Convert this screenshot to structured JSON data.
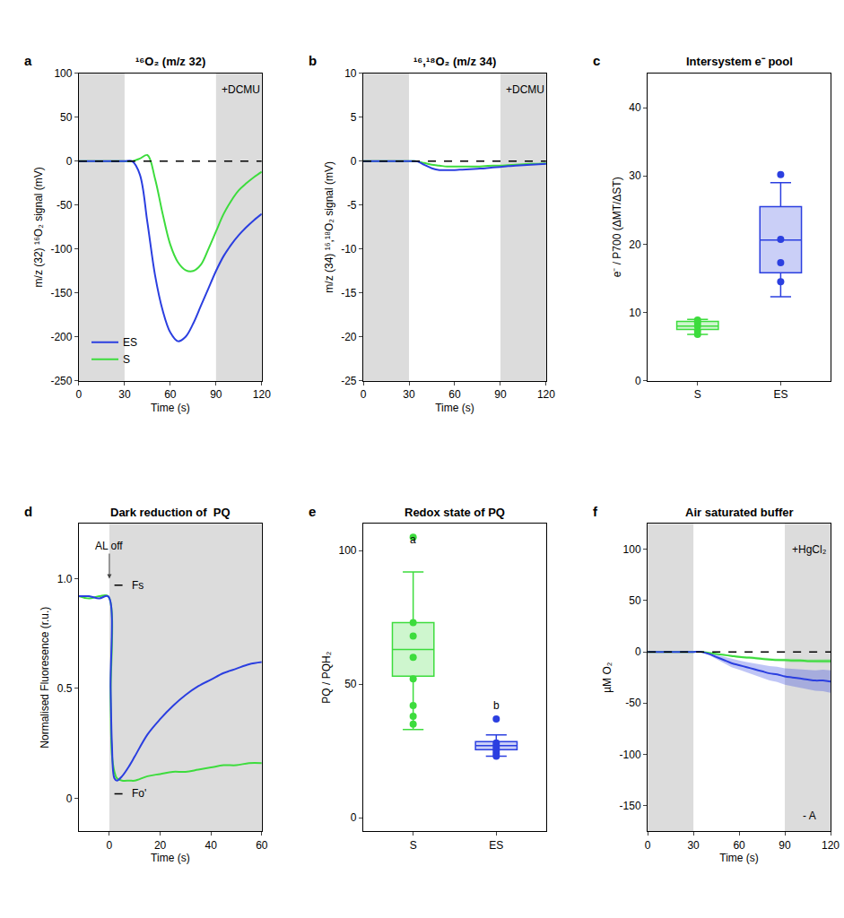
{
  "chart_data": [
    {
      "panel": "a",
      "type": "line",
      "title": "¹⁶O₂ (m/z 32)",
      "x_label": "Time (s)",
      "y_label": "m/z (32) ¹⁶O₂ signal (mV)",
      "xlim": [
        0,
        120
      ],
      "xticks": [
        0,
        30,
        60,
        90,
        120
      ],
      "ylim": [
        -250,
        100
      ],
      "yticks": [
        -250,
        -200,
        -150,
        -100,
        -50,
        0,
        50,
        100
      ],
      "dark_periods": [
        [
          0,
          30
        ],
        [
          90,
          120
        ]
      ],
      "reference_lines": [
        {
          "value": 0
        }
      ],
      "legend": "lower left",
      "annotations": [
        {
          "text": "+DCMU",
          "x": 106,
          "y": 82
        }
      ],
      "x": [
        0,
        5,
        10,
        15,
        20,
        25,
        30,
        35,
        40,
        45,
        50,
        55,
        60,
        65,
        70,
        75,
        80,
        85,
        90,
        95,
        100,
        105,
        110,
        115,
        120
      ],
      "series": [
        {
          "name": "S",
          "color": "#3ddc3d",
          "values": [
            0,
            0,
            0,
            0,
            0,
            0,
            0,
            0,
            3,
            7,
            -20,
            -60,
            -95,
            -115,
            -124,
            -125,
            -118,
            -100,
            -80,
            -60,
            -45,
            -33,
            -25,
            -18,
            -12
          ]
        },
        {
          "name": "ES",
          "color": "#2b3fe0",
          "values": [
            0,
            0,
            0,
            0,
            0,
            0,
            0,
            0,
            -15,
            -70,
            -130,
            -170,
            -195,
            -205,
            -200,
            -185,
            -165,
            -145,
            -125,
            -108,
            -95,
            -84,
            -75,
            -67,
            -60
          ]
        }
      ]
    },
    {
      "panel": "b",
      "type": "line",
      "title": "¹⁶,¹⁸O₂ (m/z 34)",
      "x_label": "Time (s)",
      "y_label": "m/z (34) ¹⁶,¹⁸O₂ signal (mV)",
      "xlim": [
        0,
        120
      ],
      "xticks": [
        0,
        30,
        60,
        90,
        120
      ],
      "ylim": [
        -25,
        10
      ],
      "yticks": [
        -25,
        -20,
        -15,
        -10,
        -5,
        0,
        5,
        10
      ],
      "dark_periods": [
        [
          0,
          30
        ],
        [
          90,
          120
        ]
      ],
      "reference_lines": [
        {
          "value": 0
        }
      ],
      "annotations": [
        {
          "text": "+DCMU",
          "x": 106,
          "y": 8.2
        }
      ],
      "x": [
        0,
        5,
        10,
        15,
        20,
        25,
        30,
        35,
        40,
        45,
        50,
        55,
        60,
        65,
        70,
        75,
        80,
        85,
        90,
        95,
        100,
        105,
        110,
        115,
        120
      ],
      "series": [
        {
          "name": "S",
          "color": "#3ddc3d",
          "values": [
            0,
            0,
            0,
            0,
            0,
            0,
            0,
            0,
            -0.2,
            -0.4,
            -0.5,
            -0.6,
            -0.6,
            -0.6,
            -0.6,
            -0.6,
            -0.55,
            -0.5,
            -0.5,
            -0.45,
            -0.4,
            -0.35,
            -0.3,
            -0.3,
            -0.25
          ]
        },
        {
          "name": "ES",
          "color": "#2b3fe0",
          "values": [
            0,
            0,
            0,
            0,
            0,
            0,
            0,
            0,
            -0.4,
            -0.8,
            -1.0,
            -1.0,
            -1.0,
            -0.95,
            -0.9,
            -0.85,
            -0.8,
            -0.7,
            -0.65,
            -0.55,
            -0.5,
            -0.45,
            -0.4,
            -0.35,
            -0.3
          ]
        }
      ]
    },
    {
      "panel": "c",
      "type": "box",
      "title": "Intersystem e⁻ pool",
      "y_label": "e⁻ / P700 (ΔMT/ΔST)",
      "categories": [
        "S",
        "ES"
      ],
      "ylim": [
        0,
        45
      ],
      "yticks": [
        0,
        10,
        20,
        30,
        40
      ],
      "series": [
        {
          "name": "S",
          "color": "#3ddc3d",
          "box": {
            "lower": 6.8,
            "q1": 7.5,
            "median": 8.0,
            "q3": 8.7,
            "upper": 9.0
          },
          "points": [
            6.8,
            7.3,
            8.0,
            8.5,
            8.9
          ]
        },
        {
          "name": "ES",
          "color": "#2b3fe0",
          "box": {
            "lower": 12.3,
            "q1": 15.8,
            "median": 20.6,
            "q3": 25.5,
            "upper": 29.0
          },
          "points": [
            14.5,
            17.3,
            20.7,
            30.2
          ]
        }
      ]
    },
    {
      "panel": "d",
      "type": "line",
      "title": "Dark reduction of  PQ",
      "x_label": "Time (s)",
      "y_label": "Normalised Fluoresence (r.u.)",
      "xlim": [
        -12,
        60
      ],
      "xticks": [
        0,
        20,
        40,
        60
      ],
      "ylim": [
        -0.15,
        1.25
      ],
      "yticks": [
        0,
        0.5,
        {
          "value": 1,
          "label": "1.0"
        }
      ],
      "dark_periods": [
        [
          0,
          60
        ]
      ],
      "reference_lines": [
        {
          "label": "Fs",
          "value": 0.97,
          "x": [
            2,
            8
          ]
        },
        {
          "label": "Fo'",
          "value": 0.02,
          "x": [
            2,
            8
          ]
        }
      ],
      "annotations": [
        {
          "text": "AL off",
          "x": 0,
          "y": 1.0,
          "marker": "arrow"
        }
      ],
      "x": [
        -12,
        -8,
        -4,
        -0.5,
        0.5,
        1,
        2,
        3,
        5,
        8,
        10,
        15,
        20,
        25,
        30,
        35,
        40,
        45,
        50,
        55,
        60
      ],
      "series": [
        {
          "name": "S",
          "color": "#3ddc3d",
          "values": [
            0.92,
            0.91,
            0.92,
            0.92,
            0.45,
            0.2,
            0.12,
            0.09,
            0.08,
            0.08,
            0.08,
            0.1,
            0.11,
            0.12,
            0.12,
            0.13,
            0.14,
            0.15,
            0.15,
            0.16,
            0.16
          ]
        },
        {
          "name": "ES",
          "color": "#2b3fe0",
          "values": [
            0.92,
            0.92,
            0.91,
            0.92,
            0.5,
            0.25,
            0.09,
            0.08,
            0.1,
            0.15,
            0.19,
            0.29,
            0.36,
            0.42,
            0.47,
            0.51,
            0.54,
            0.57,
            0.59,
            0.61,
            0.62
          ]
        }
      ]
    },
    {
      "panel": "e",
      "type": "box",
      "title": "Redox state of PQ",
      "y_label": "PQ / PQH₂",
      "categories": [
        "S",
        "ES"
      ],
      "ylim": [
        -5,
        110
      ],
      "yticks": [
        0,
        50,
        100
      ],
      "annotations": [
        {
          "text": "a",
          "x": 0,
          "y": 104
        },
        {
          "text": "b",
          "x": 1,
          "y": 42
        }
      ],
      "series": [
        {
          "name": "S",
          "color": "#3ddc3d",
          "box": {
            "lower": 33,
            "q1": 53,
            "median": 63,
            "q3": 73,
            "upper": 92
          },
          "points": [
            105,
            73,
            68,
            60,
            52,
            42,
            38,
            35
          ]
        },
        {
          "name": "ES",
          "color": "#2b3fe0",
          "box": {
            "lower": 23,
            "q1": 25.5,
            "median": 27,
            "q3": 28.5,
            "upper": 31
          },
          "points": [
            37,
            28,
            27,
            26,
            25,
            24,
            23
          ]
        }
      ]
    },
    {
      "panel": "f",
      "type": "line",
      "title": "Air saturated buffer",
      "x_label": "Time (s)",
      "y_label": "µM O₂",
      "xlim": [
        0,
        120
      ],
      "xticks": [
        0,
        30,
        60,
        90,
        120
      ],
      "ylim": [
        -175,
        125
      ],
      "yticks": [
        -150,
        -100,
        -50,
        0,
        50,
        100
      ],
      "dark_periods": [
        [
          0,
          30
        ],
        [
          90,
          120
        ]
      ],
      "reference_lines": [
        {
          "value": 0
        }
      ],
      "annotations": [
        {
          "text": "+HgCl₂",
          "x": 106,
          "y": 100
        },
        {
          "text": "- A",
          "x": 106,
          "y": -160
        }
      ],
      "x": [
        0,
        5,
        10,
        15,
        20,
        25,
        30,
        35,
        40,
        45,
        50,
        55,
        60,
        65,
        70,
        75,
        80,
        85,
        90,
        95,
        100,
        105,
        110,
        115,
        120
      ],
      "series": [
        {
          "name": "S",
          "color": "#3ddc3d",
          "values": [
            0,
            0,
            0,
            0,
            0,
            0,
            0,
            0,
            -1,
            -2,
            -3,
            -4,
            -5,
            -5.5,
            -6,
            -7,
            -7.5,
            -8,
            -8,
            -8.5,
            -8.5,
            -9,
            -9,
            -9,
            -9
          ],
          "error": [
            0,
            0,
            0,
            0,
            0,
            0,
            0,
            0,
            0.3,
            0.5,
            0.7,
            0.9,
            1,
            1.1,
            1.2,
            1.3,
            1.4,
            1.5,
            1.5,
            1.6,
            1.6,
            1.7,
            1.7,
            1.8,
            1.8
          ]
        },
        {
          "name": "ES",
          "color": "#2b3fe0",
          "values": [
            0,
            0,
            0,
            0,
            0,
            0,
            0,
            0,
            -2,
            -5,
            -8,
            -11,
            -13,
            -15,
            -17,
            -19,
            -21,
            -22,
            -24,
            -25,
            -26,
            -27,
            -28,
            -28,
            -29
          ],
          "error": [
            0,
            0,
            0,
            0,
            0,
            0,
            0,
            0,
            1,
            2,
            3,
            4,
            4.5,
            5,
            6,
            6.5,
            7,
            7.5,
            8,
            8.5,
            9,
            9.5,
            10,
            10.5,
            11
          ]
        }
      ]
    }
  ]
}
